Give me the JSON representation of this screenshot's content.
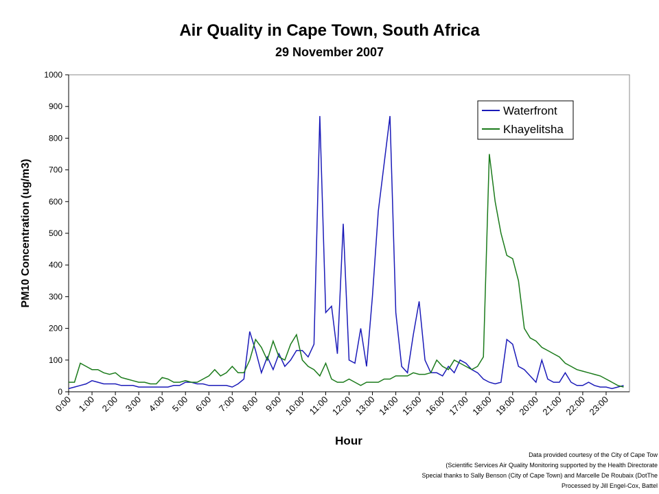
{
  "chart_data": {
    "type": "line",
    "title": "Air Quality in Cape Town, South Africa",
    "subtitle": "29 November 2007",
    "x_label": "Hour",
    "y_label": "PM10 Concentration (ug/m3)",
    "categories": [
      "0:00",
      null,
      null,
      null,
      "1:00",
      null,
      null,
      null,
      "2:00",
      null,
      null,
      null,
      "3:00",
      null,
      null,
      null,
      "4:00",
      null,
      null,
      null,
      "5:00",
      null,
      null,
      null,
      "6:00",
      null,
      null,
      null,
      "7:00",
      null,
      null,
      null,
      "8:00",
      null,
      null,
      null,
      "9:00",
      null,
      null,
      null,
      "10:00",
      null,
      null,
      null,
      "11:00",
      null,
      null,
      null,
      "12:00",
      null,
      null,
      null,
      "13:00",
      null,
      null,
      null,
      "14:00",
      null,
      null,
      null,
      "15:00",
      null,
      null,
      null,
      "16:00",
      null,
      null,
      null,
      "17:00",
      null,
      null,
      null,
      "18:00",
      null,
      null,
      null,
      "19:00",
      null,
      null,
      null,
      "20:00",
      null,
      null,
      null,
      "21:00",
      null,
      null,
      null,
      "22:00",
      null,
      null,
      null,
      "23:00",
      null,
      null,
      null
    ],
    "series": [
      {
        "name": "Waterfront",
        "color": "#1a1ab8",
        "values": [
          10,
          15,
          20,
          25,
          35,
          30,
          25,
          25,
          25,
          20,
          20,
          20,
          15,
          15,
          15,
          15,
          15,
          15,
          20,
          20,
          30,
          30,
          25,
          25,
          20,
          20,
          20,
          20,
          15,
          25,
          40,
          190,
          130,
          60,
          110,
          70,
          120,
          80,
          100,
          130,
          130,
          110,
          150,
          870,
          250,
          270,
          120,
          530,
          100,
          90,
          200,
          80,
          300,
          570,
          720,
          870,
          250,
          80,
          60,
          180,
          285,
          100,
          60,
          60,
          50,
          80,
          60,
          100,
          90,
          70,
          60,
          40,
          30,
          25,
          30,
          165,
          150,
          80,
          70,
          50,
          30,
          100,
          40,
          30,
          30,
          60,
          30,
          20,
          20,
          30,
          20,
          15,
          15,
          10,
          15,
          20
        ]
      },
      {
        "name": "Khayelitsha",
        "color": "#1a7a1a",
        "values": [
          30,
          30,
          90,
          80,
          70,
          70,
          60,
          55,
          60,
          45,
          40,
          35,
          30,
          30,
          25,
          25,
          45,
          40,
          30,
          30,
          35,
          30,
          30,
          40,
          50,
          70,
          50,
          60,
          80,
          60,
          60,
          100,
          165,
          140,
          100,
          160,
          110,
          100,
          150,
          180,
          100,
          80,
          70,
          50,
          90,
          40,
          30,
          30,
          40,
          30,
          20,
          30,
          30,
          30,
          40,
          40,
          50,
          50,
          50,
          60,
          55,
          55,
          60,
          100,
          80,
          70,
          100,
          90,
          80,
          70,
          80,
          110,
          750,
          600,
          500,
          430,
          420,
          350,
          200,
          170,
          160,
          140,
          130,
          120,
          110,
          90,
          80,
          70,
          65,
          60,
          55,
          50,
          40,
          30,
          20,
          15
        ]
      }
    ],
    "ylim": [
      0,
      1000
    ],
    "yticks": [
      0,
      100,
      200,
      300,
      400,
      500,
      600,
      700,
      800,
      900,
      1000
    ],
    "grid": false,
    "legend": "top-right",
    "notes": [
      "Data provided courtesy of the City of Cape Tow",
      "(Scientific Services Air Quality Monitoring supported by the Health Directorate",
      "Special thanks to Sally Benson (City of Cape Town) and Marcelle De Roubaix (DotThe",
      "Processed by Jill Engel-Cox, Battel"
    ]
  }
}
